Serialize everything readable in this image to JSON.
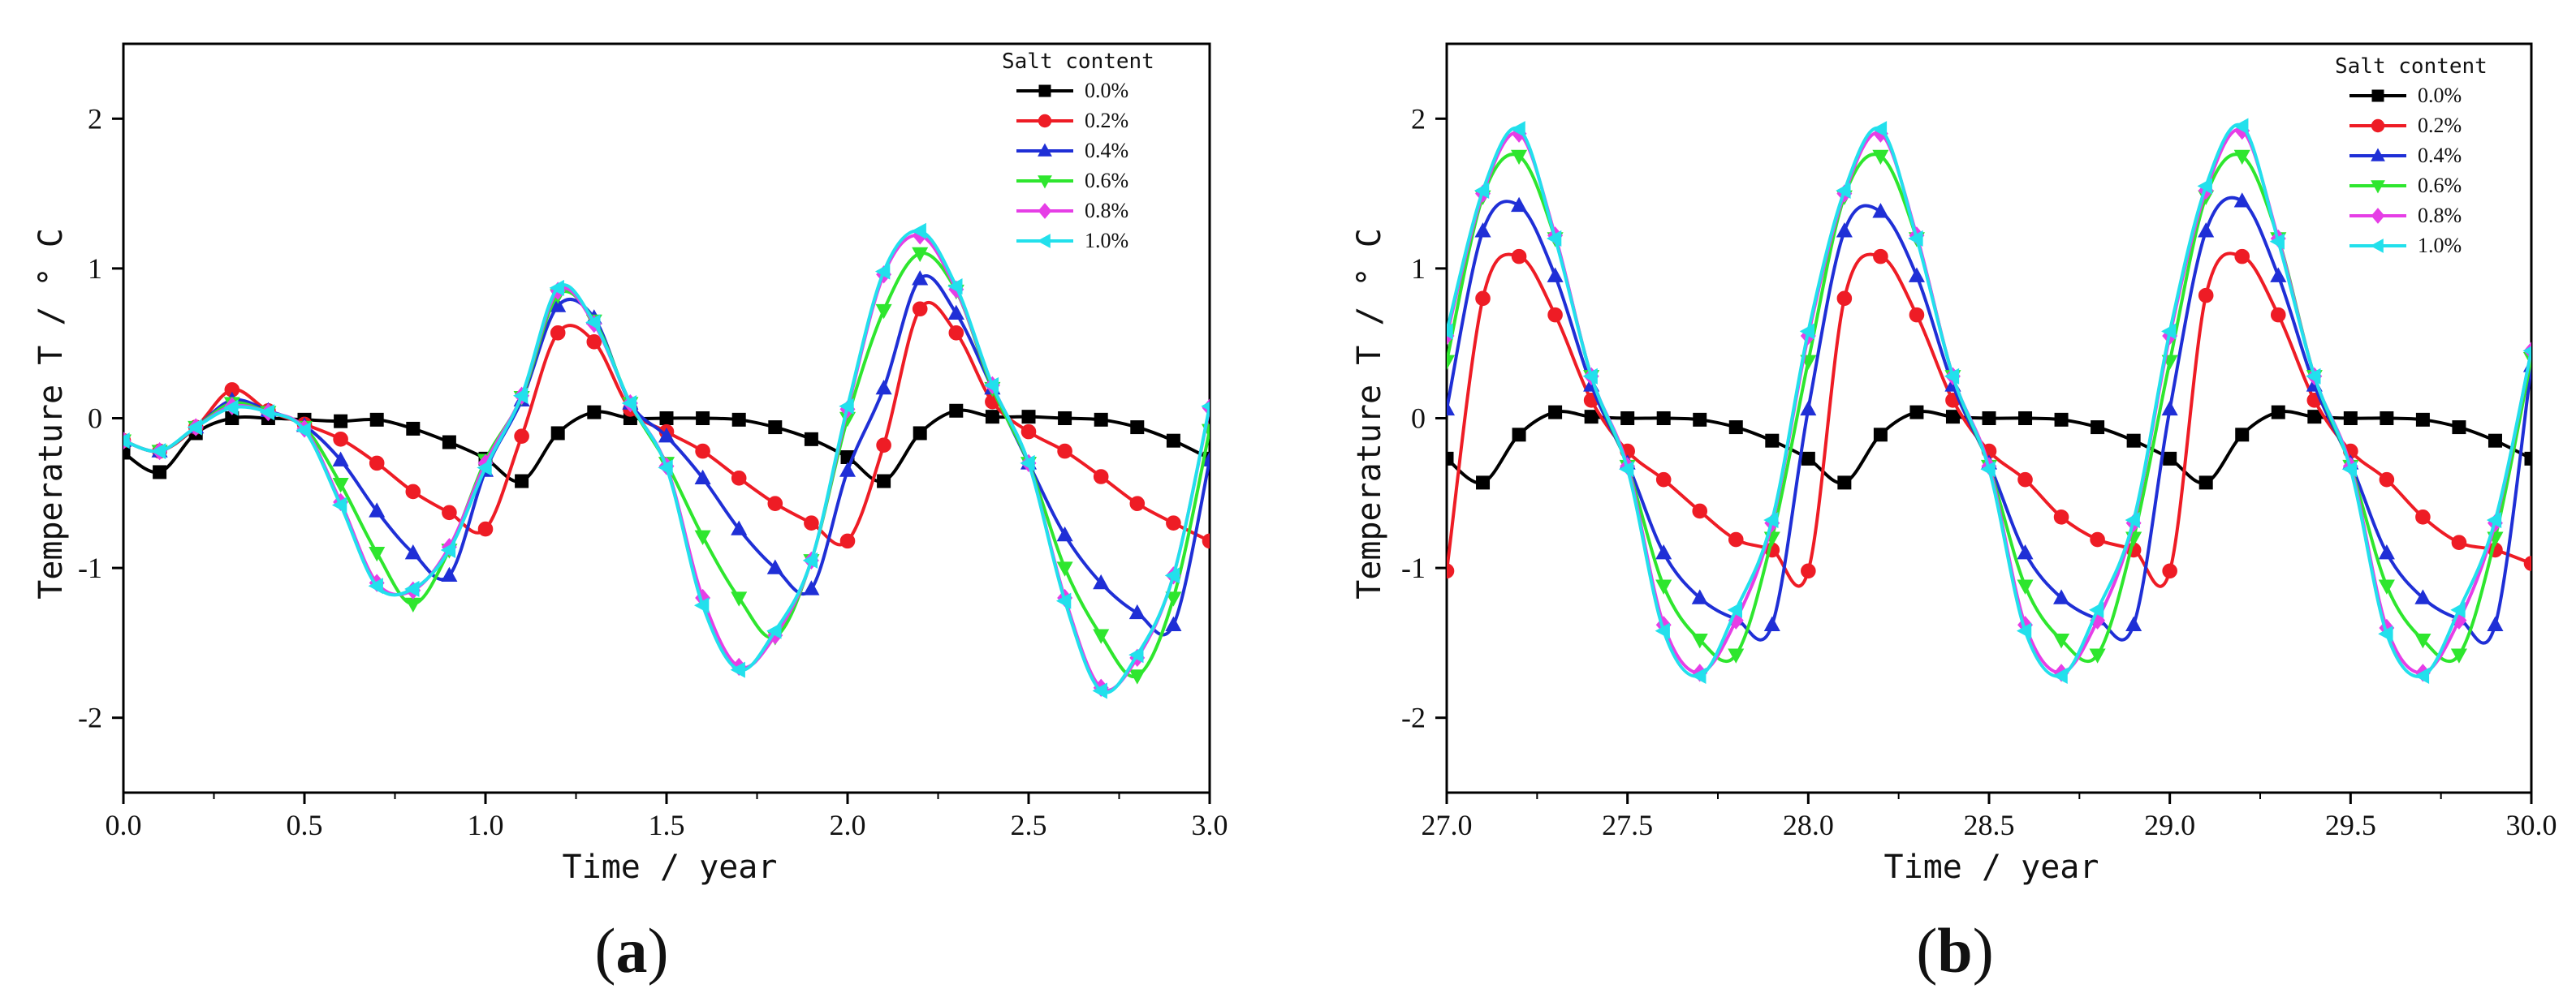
{
  "chart_data": [
    {
      "type": "line",
      "panel_label": "(a)",
      "panel_label_prefix": "(",
      "panel_label_letter": "a",
      "panel_label_suffix": ")",
      "xlabel": "Time / year",
      "ylabel": "Temperature T / ° C",
      "xlim": [
        0.0,
        3.0
      ],
      "ylim": [
        -2.5,
        2.5
      ],
      "xticks": [
        "0.0",
        "0.5",
        "1.0",
        "1.5",
        "2.0",
        "2.5",
        "3.0"
      ],
      "yticks": [
        "-2",
        "-1",
        "0",
        "1",
        "2"
      ],
      "legend_title": "Salt content",
      "legend_position": "top-right",
      "series": [
        {
          "name": "0.0%",
          "color": "#000000",
          "marker": "square",
          "x": [
            0.0,
            0.1,
            0.2,
            0.3,
            0.4,
            0.5,
            0.6,
            0.7,
            0.8,
            0.9,
            1.0,
            1.1,
            1.2,
            1.3,
            1.4,
            1.5,
            1.6,
            1.7,
            1.8,
            1.9,
            2.0,
            2.1,
            2.2,
            2.3,
            2.4,
            2.5,
            2.6,
            2.7,
            2.8,
            2.9,
            3.0
          ],
          "y": [
            -0.23,
            -0.36,
            -0.1,
            0.0,
            0.0,
            -0.01,
            -0.02,
            -0.01,
            -0.07,
            -0.16,
            -0.27,
            -0.42,
            -0.1,
            0.04,
            0.0,
            0.0,
            0.0,
            -0.01,
            -0.06,
            -0.14,
            -0.26,
            -0.42,
            -0.1,
            0.05,
            0.01,
            0.01,
            0.0,
            -0.01,
            -0.06,
            -0.15,
            -0.27
          ]
        },
        {
          "name": "0.2%",
          "color": "#ee1c25",
          "marker": "circle",
          "x": [
            0.0,
            0.1,
            0.2,
            0.3,
            0.4,
            0.5,
            0.6,
            0.7,
            0.8,
            0.9,
            1.0,
            1.1,
            1.2,
            1.3,
            1.4,
            1.5,
            1.6,
            1.7,
            1.8,
            1.9,
            2.0,
            2.1,
            2.2,
            2.3,
            2.4,
            2.5,
            2.6,
            2.7,
            2.8,
            2.9,
            3.0
          ],
          "y": [
            -0.15,
            -0.22,
            -0.06,
            0.19,
            0.05,
            -0.04,
            -0.14,
            -0.3,
            -0.49,
            -0.63,
            -0.74,
            -0.12,
            0.57,
            0.51,
            0.06,
            -0.09,
            -0.22,
            -0.4,
            -0.57,
            -0.7,
            -0.82,
            -0.18,
            0.73,
            0.57,
            0.11,
            -0.09,
            -0.22,
            -0.39,
            -0.57,
            -0.7,
            -0.82
          ]
        },
        {
          "name": "0.4%",
          "color": "#1f2fd6",
          "marker": "triangle-up",
          "x": [
            0.0,
            0.1,
            0.2,
            0.3,
            0.4,
            0.5,
            0.6,
            0.7,
            0.8,
            0.9,
            1.0,
            1.1,
            1.2,
            1.3,
            1.4,
            1.5,
            1.6,
            1.7,
            1.8,
            1.9,
            2.0,
            2.1,
            2.2,
            2.3,
            2.4,
            2.5,
            2.6,
            2.7,
            2.8,
            2.9,
            3.0
          ],
          "y": [
            -0.15,
            -0.22,
            -0.06,
            0.12,
            0.05,
            -0.05,
            -0.28,
            -0.62,
            -0.9,
            -1.05,
            -0.35,
            0.12,
            0.75,
            0.67,
            0.1,
            -0.12,
            -0.4,
            -0.74,
            -1.0,
            -1.14,
            -0.35,
            0.2,
            0.93,
            0.7,
            0.2,
            -0.3,
            -0.78,
            -1.1,
            -1.3,
            -1.38,
            -0.28
          ]
        },
        {
          "name": "0.6%",
          "color": "#2ee62e",
          "marker": "triangle-down",
          "x": [
            0.0,
            0.1,
            0.2,
            0.3,
            0.4,
            0.5,
            0.6,
            0.7,
            0.8,
            0.9,
            1.0,
            1.1,
            1.2,
            1.3,
            1.4,
            1.5,
            1.6,
            1.7,
            1.8,
            1.9,
            2.0,
            2.1,
            2.2,
            2.3,
            2.4,
            2.5,
            2.6,
            2.7,
            2.8,
            2.9,
            3.0
          ],
          "y": [
            -0.15,
            -0.22,
            -0.06,
            0.1,
            0.04,
            -0.06,
            -0.44,
            -0.9,
            -1.24,
            -0.88,
            -0.28,
            0.14,
            0.82,
            0.65,
            0.1,
            -0.3,
            -0.79,
            -1.2,
            -1.46,
            -0.95,
            0.0,
            0.72,
            1.1,
            0.85,
            0.2,
            -0.3,
            -1.0,
            -1.45,
            -1.72,
            -1.2,
            -0.08
          ]
        },
        {
          "name": "0.8%",
          "color": "#e63ee6",
          "marker": "diamond",
          "x": [
            0.0,
            0.1,
            0.2,
            0.3,
            0.4,
            0.5,
            0.6,
            0.7,
            0.8,
            0.9,
            1.0,
            1.1,
            1.2,
            1.3,
            1.4,
            1.5,
            1.6,
            1.7,
            1.8,
            1.9,
            2.0,
            2.1,
            2.2,
            2.3,
            2.4,
            2.5,
            2.6,
            2.7,
            2.8,
            2.9,
            3.0
          ],
          "y": [
            -0.15,
            -0.22,
            -0.06,
            0.08,
            0.04,
            -0.07,
            -0.56,
            -1.1,
            -1.15,
            -0.86,
            -0.3,
            0.15,
            0.85,
            0.63,
            0.1,
            -0.32,
            -1.2,
            -1.66,
            -1.45,
            -0.95,
            0.06,
            0.96,
            1.22,
            0.86,
            0.22,
            -0.3,
            -1.2,
            -1.8,
            -1.6,
            -1.05,
            0.07
          ]
        },
        {
          "name": "1.0%",
          "color": "#22e0ec",
          "marker": "triangle-left",
          "x": [
            0.0,
            0.1,
            0.2,
            0.3,
            0.4,
            0.5,
            0.6,
            0.7,
            0.8,
            0.9,
            1.0,
            1.1,
            1.2,
            1.3,
            1.4,
            1.5,
            1.6,
            1.7,
            1.8,
            1.9,
            2.0,
            2.1,
            2.2,
            2.3,
            2.4,
            2.5,
            2.6,
            2.7,
            2.8,
            2.9,
            3.0
          ],
          "y": [
            -0.15,
            -0.22,
            -0.06,
            0.07,
            0.04,
            -0.08,
            -0.58,
            -1.12,
            -1.14,
            -0.88,
            -0.33,
            0.15,
            0.87,
            0.64,
            0.1,
            -0.33,
            -1.25,
            -1.68,
            -1.42,
            -0.95,
            0.08,
            0.98,
            1.25,
            0.88,
            0.22,
            -0.3,
            -1.22,
            -1.82,
            -1.58,
            -1.05,
            0.08
          ]
        }
      ]
    },
    {
      "type": "line",
      "panel_label": "(b)",
      "panel_label_prefix": "(",
      "panel_label_letter": "b",
      "panel_label_suffix": ")",
      "xlabel": "Time / year",
      "ylabel": "Temperature T / ° C",
      "xlim": [
        27.0,
        30.0
      ],
      "ylim": [
        -2.5,
        2.5
      ],
      "xticks": [
        "27.0",
        "27.5",
        "28.0",
        "28.5",
        "29.0",
        "29.5",
        "30.0"
      ],
      "yticks": [
        "-2",
        "-1",
        "0",
        "1",
        "2"
      ],
      "legend_title": "Salt content",
      "legend_position": "top-right",
      "series": [
        {
          "name": "0.0%",
          "color": "#000000",
          "marker": "square",
          "x": [
            27.0,
            27.1,
            27.2,
            27.3,
            27.4,
            27.5,
            27.6,
            27.7,
            27.8,
            27.9,
            28.0,
            28.1,
            28.2,
            28.3,
            28.4,
            28.5,
            28.6,
            28.7,
            28.8,
            28.9,
            29.0,
            29.1,
            29.2,
            29.3,
            29.4,
            29.5,
            29.6,
            29.7,
            29.8,
            29.9,
            30.0
          ],
          "y": [
            -0.27,
            -0.43,
            -0.11,
            0.04,
            0.01,
            0.0,
            0.0,
            -0.01,
            -0.06,
            -0.15,
            -0.27,
            -0.43,
            -0.11,
            0.04,
            0.01,
            0.0,
            0.0,
            -0.01,
            -0.06,
            -0.15,
            -0.27,
            -0.43,
            -0.11,
            0.04,
            0.01,
            0.0,
            0.0,
            -0.01,
            -0.06,
            -0.15,
            -0.27
          ]
        },
        {
          "name": "0.2%",
          "color": "#ee1c25",
          "marker": "circle",
          "x": [
            27.0,
            27.1,
            27.2,
            27.3,
            27.4,
            27.5,
            27.6,
            27.7,
            27.8,
            27.9,
            28.0,
            28.1,
            28.2,
            28.3,
            28.4,
            28.5,
            28.6,
            28.7,
            28.8,
            28.9,
            29.0,
            29.1,
            29.2,
            29.3,
            29.4,
            29.5,
            29.6,
            29.7,
            29.8,
            29.9,
            30.0
          ],
          "y": [
            -1.02,
            0.8,
            1.08,
            0.69,
            0.12,
            -0.22,
            -0.41,
            -0.62,
            -0.81,
            -0.88,
            -1.02,
            0.8,
            1.08,
            0.69,
            0.12,
            -0.22,
            -0.41,
            -0.66,
            -0.81,
            -0.88,
            -1.02,
            0.82,
            1.08,
            0.69,
            0.12,
            -0.22,
            -0.41,
            -0.66,
            -0.83,
            -0.88,
            -0.97
          ]
        },
        {
          "name": "0.4%",
          "color": "#1f2fd6",
          "marker": "triangle-up",
          "x": [
            27.0,
            27.1,
            27.2,
            27.3,
            27.4,
            27.5,
            27.6,
            27.7,
            27.8,
            27.9,
            28.0,
            28.1,
            28.2,
            28.3,
            28.4,
            28.5,
            28.6,
            28.7,
            28.8,
            28.9,
            29.0,
            29.1,
            29.2,
            29.3,
            29.4,
            29.5,
            29.6,
            29.7,
            29.8,
            29.9,
            30.0
          ],
          "y": [
            0.06,
            1.25,
            1.42,
            0.95,
            0.22,
            -0.3,
            -0.9,
            -1.2,
            -1.34,
            -1.38,
            0.06,
            1.25,
            1.38,
            0.95,
            0.22,
            -0.3,
            -0.9,
            -1.2,
            -1.34,
            -1.38,
            0.06,
            1.25,
            1.45,
            0.95,
            0.22,
            -0.3,
            -0.9,
            -1.2,
            -1.34,
            -1.38,
            0.35
          ]
        },
        {
          "name": "0.6%",
          "color": "#2ee62e",
          "marker": "triangle-down",
          "x": [
            27.0,
            27.1,
            27.2,
            27.3,
            27.4,
            27.5,
            27.6,
            27.7,
            27.8,
            27.9,
            28.0,
            28.1,
            28.2,
            28.3,
            28.4,
            28.5,
            28.6,
            28.7,
            28.8,
            28.9,
            29.0,
            29.1,
            29.2,
            29.3,
            29.4,
            29.5,
            29.6,
            29.7,
            29.8,
            29.9,
            30.0
          ],
          "y": [
            0.38,
            1.48,
            1.75,
            1.2,
            0.28,
            -0.32,
            -1.12,
            -1.48,
            -1.58,
            -0.8,
            0.38,
            1.48,
            1.75,
            1.2,
            0.28,
            -0.32,
            -1.12,
            -1.48,
            -1.58,
            -0.8,
            0.38,
            1.48,
            1.75,
            1.2,
            0.28,
            -0.32,
            -1.12,
            -1.48,
            -1.58,
            -0.8,
            0.4
          ]
        },
        {
          "name": "0.8%",
          "color": "#e63ee6",
          "marker": "diamond",
          "x": [
            27.0,
            27.1,
            27.2,
            27.3,
            27.4,
            27.5,
            27.6,
            27.7,
            27.8,
            27.9,
            28.0,
            28.1,
            28.2,
            28.3,
            28.4,
            28.5,
            28.6,
            28.7,
            28.8,
            28.9,
            29.0,
            29.1,
            29.2,
            29.3,
            29.4,
            29.5,
            29.6,
            29.7,
            29.8,
            29.9,
            30.0
          ],
          "y": [
            0.55,
            1.5,
            1.9,
            1.22,
            0.28,
            -0.32,
            -1.38,
            -1.7,
            -1.35,
            -0.7,
            0.55,
            1.5,
            1.9,
            1.22,
            0.28,
            -0.32,
            -1.38,
            -1.7,
            -1.35,
            -0.7,
            0.55,
            1.52,
            1.92,
            1.2,
            0.28,
            -0.32,
            -1.4,
            -1.7,
            -1.35,
            -0.7,
            0.45
          ]
        },
        {
          "name": "1.0%",
          "color": "#22e0ec",
          "marker": "triangle-left",
          "x": [
            27.0,
            27.1,
            27.2,
            27.3,
            27.4,
            27.5,
            27.6,
            27.7,
            27.8,
            27.9,
            28.0,
            28.1,
            28.2,
            28.3,
            28.4,
            28.5,
            28.6,
            28.7,
            28.8,
            28.9,
            29.0,
            29.1,
            29.2,
            29.3,
            29.4,
            29.5,
            29.6,
            29.7,
            29.8,
            29.9,
            30.0
          ],
          "y": [
            0.58,
            1.52,
            1.93,
            1.2,
            0.28,
            -0.34,
            -1.42,
            -1.72,
            -1.28,
            -0.68,
            0.58,
            1.52,
            1.93,
            1.2,
            0.28,
            -0.34,
            -1.42,
            -1.72,
            -1.28,
            -0.68,
            0.58,
            1.55,
            1.95,
            1.18,
            0.28,
            -0.34,
            -1.44,
            -1.72,
            -1.28,
            -0.68,
            0.45
          ]
        }
      ]
    }
  ]
}
